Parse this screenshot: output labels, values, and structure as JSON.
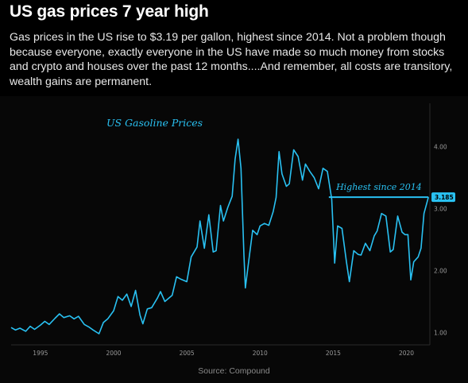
{
  "post": {
    "headline": "US gas prices 7 year high",
    "caption": "Gas prices in the US rise to $3.19 per gallon, highest since 2014. Not a problem though because everyone, exactly everyone in the US have made so much money from stocks and crypto and houses over the past 12 months....And remember, all costs are transitory, wealth gains are permanent.",
    "source": "Source: Compound"
  },
  "colors": {
    "line": "#29c1f2",
    "annotation": "#29c1f2",
    "axis_text": "#9a9a9a",
    "badge_bg": "#29c1f2",
    "badge_text": "#000000"
  },
  "chart_data": {
    "type": "line",
    "title": "US Gasoline Prices",
    "xlabel": "",
    "ylabel": "",
    "xlim": [
      1993,
      2021.6
    ],
    "ylim": [
      0.8,
      4.7
    ],
    "x_ticks": [
      1995,
      2000,
      2005,
      2010,
      2015,
      2020
    ],
    "y_ticks": [
      1.0,
      2.0,
      3.0,
      4.0
    ],
    "y_tick_labels": [
      "1.00",
      "2.00",
      "3.00",
      "4.00"
    ],
    "annotation": {
      "text": "Highest since 2014",
      "y": 3.185
    },
    "last_value_label": "3.185",
    "grid": false,
    "series": [
      {
        "x": [
          1993.0,
          1993.3,
          1993.6,
          1994.0,
          1994.3,
          1994.6,
          1995.0,
          1995.3,
          1995.6,
          1996.0,
          1996.3,
          1996.6,
          1997.0,
          1997.3,
          1997.6,
          1998.0,
          1998.3,
          1998.6,
          1999.0,
          1999.3,
          1999.6,
          2000.0,
          2000.3,
          2000.6,
          2000.9,
          2001.2,
          2001.5,
          2001.8,
          2002.0,
          2002.3,
          2002.6,
          2003.0,
          2003.2,
          2003.5,
          2003.8,
          2004.0,
          2004.3,
          2004.6,
          2005.0,
          2005.3,
          2005.7,
          2005.9,
          2006.2,
          2006.5,
          2006.8,
          2007.0,
          2007.3,
          2007.5,
          2007.8,
          2008.1,
          2008.3,
          2008.5,
          2008.7,
          2008.9,
          2009.0,
          2009.2,
          2009.5,
          2009.8,
          2010.0,
          2010.3,
          2010.6,
          2010.9,
          2011.1,
          2011.3,
          2011.5,
          2011.8,
          2012.0,
          2012.3,
          2012.6,
          2012.9,
          2013.1,
          2013.4,
          2013.7,
          2014.0,
          2014.3,
          2014.6,
          2014.9,
          2015.1,
          2015.3,
          2015.6,
          2015.9,
          2016.1,
          2016.4,
          2016.7,
          2016.9,
          2017.2,
          2017.5,
          2017.8,
          2018.0,
          2018.3,
          2018.6,
          2018.9,
          2019.1,
          2019.4,
          2019.7,
          2019.9,
          2020.1,
          2020.3,
          2020.5,
          2020.8,
          2021.0,
          2021.2,
          2021.5
        ],
        "y": [
          1.08,
          1.04,
          1.07,
          1.02,
          1.1,
          1.05,
          1.12,
          1.18,
          1.13,
          1.23,
          1.3,
          1.24,
          1.27,
          1.22,
          1.26,
          1.13,
          1.09,
          1.04,
          0.98,
          1.16,
          1.22,
          1.35,
          1.58,
          1.52,
          1.62,
          1.42,
          1.68,
          1.28,
          1.14,
          1.38,
          1.4,
          1.56,
          1.66,
          1.5,
          1.56,
          1.6,
          1.9,
          1.86,
          1.82,
          2.22,
          2.38,
          2.8,
          2.36,
          2.9,
          2.3,
          2.32,
          3.05,
          2.8,
          3.02,
          3.2,
          3.8,
          4.12,
          3.65,
          2.25,
          1.72,
          2.1,
          2.65,
          2.58,
          2.72,
          2.76,
          2.73,
          2.95,
          3.18,
          3.92,
          3.56,
          3.36,
          3.4,
          3.95,
          3.84,
          3.46,
          3.72,
          3.6,
          3.5,
          3.32,
          3.65,
          3.6,
          3.15,
          2.12,
          2.72,
          2.68,
          2.14,
          1.82,
          2.32,
          2.26,
          2.25,
          2.44,
          2.32,
          2.56,
          2.64,
          2.92,
          2.88,
          2.3,
          2.34,
          2.88,
          2.62,
          2.58,
          2.58,
          1.85,
          2.14,
          2.22,
          2.36,
          2.92,
          3.185
        ]
      }
    ]
  }
}
